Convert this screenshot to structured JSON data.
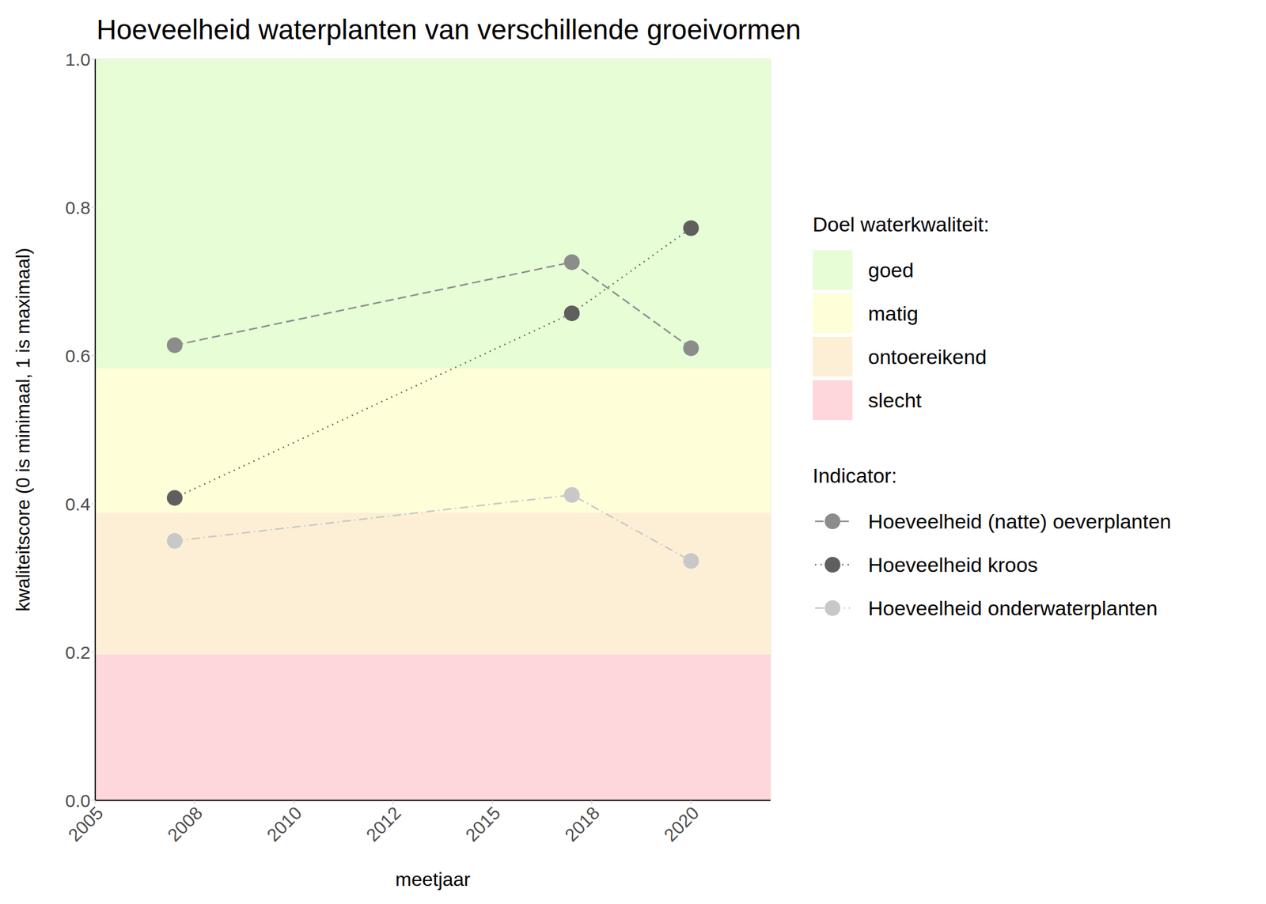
{
  "chart_data": {
    "type": "line",
    "title": "Hoeveelheid waterplanten van verschillende groeivormen",
    "x_label": "meetjaar",
    "y_label": "kwaliteitscore (0 is minimaal, 1 is maximaal)",
    "x": [
      2007,
      2017,
      2020
    ],
    "series": [
      {
        "name": "Hoeveelheid (natte) oeverplanten",
        "color": "#8c8c8c",
        "line_style": "dashed",
        "marker": "circle",
        "values": [
          0.614,
          0.726,
          0.61
        ]
      },
      {
        "name": "Hoeveelheid kroos",
        "color": "#5f5f5f",
        "line_style": "dotted",
        "marker": "circle",
        "values": [
          0.408,
          0.657,
          0.772
        ]
      },
      {
        "name": "Hoeveelheid onderwaterplanten",
        "color": "#c8c8c8",
        "line_style": "dashdot",
        "marker": "circle",
        "values": [
          0.35,
          0.412,
          0.323
        ]
      }
    ],
    "xlim": [
      2005,
      2022
    ],
    "xticks": [
      2005,
      {
        "value": 2007.5,
        "label": "2008"
      },
      2010,
      {
        "value": 2012.5,
        "label": "2012"
      },
      2015,
      {
        "value": 2017.5,
        "label": "2018"
      },
      2020
    ],
    "ylim": [
      0,
      1
    ],
    "yticks": [
      {
        "value": 0,
        "label": "0.0"
      },
      0.2,
      0.4,
      0.6,
      0.8,
      {
        "value": 1,
        "label": "1.0"
      }
    ],
    "grid": true,
    "legend": "right",
    "legend_title": "Indicator:",
    "bands_title": "Doel waterkwaliteit:",
    "bands": [
      {
        "name": "goed",
        "color": "#e6fdd6",
        "from": 0.583,
        "to": 1
      },
      {
        "name": "matig",
        "color": "#fefed8",
        "from": 0.388,
        "to": 0.583
      },
      {
        "name": "ontoereikend",
        "color": "#fdefd6",
        "from": 0.197,
        "to": 0.388
      },
      {
        "name": "slecht",
        "color": "#fed7da",
        "from": 0,
        "to": 0.197
      }
    ]
  }
}
